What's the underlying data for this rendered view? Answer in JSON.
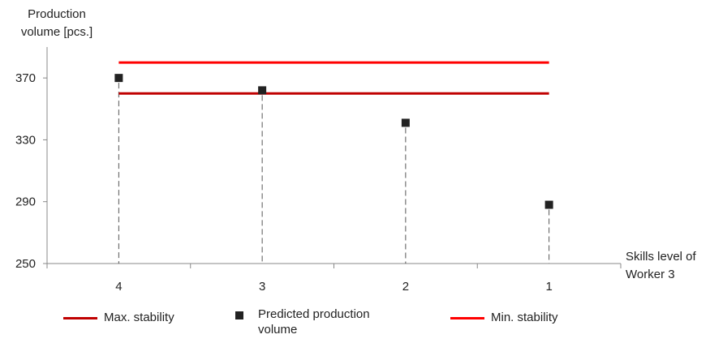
{
  "chart_data": {
    "type": "scatter",
    "ylabel": [
      "Production",
      "volume [pcs.]"
    ],
    "xlabel": [
      "Skills level of",
      "Worker 3"
    ],
    "categories": [
      "4",
      "3",
      "2",
      "1"
    ],
    "ylim": [
      250,
      390
    ],
    "yticks": [
      250,
      290,
      330,
      370
    ],
    "grid": false,
    "legend_position": "bottom",
    "series": [
      {
        "name": "Predicted production volume",
        "kind": "points",
        "values": [
          370,
          362,
          341,
          288
        ]
      },
      {
        "name": "Max. stability",
        "kind": "hline",
        "value": 360
      },
      {
        "name": "Min. stability",
        "kind": "hline",
        "value": 380
      }
    ],
    "colors": {
      "max_stability": "#c00000",
      "min_stability": "#ff0000",
      "points": "#222222",
      "drop_lines": "#555555"
    }
  },
  "legend": {
    "max_label": "Max. stability",
    "predicted_label_1": "Predicted production",
    "predicted_label_2": "volume",
    "min_label": "Min. stability"
  }
}
